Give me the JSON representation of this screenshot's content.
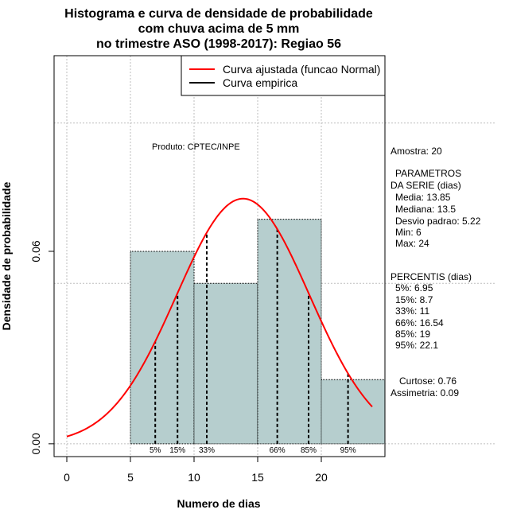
{
  "chart_data": {
    "type": "bar",
    "title": [
      "Histograma e curva de densidade de probabilidade",
      "com chuva acima de 5 mm",
      "no trimestre ASO (1998-2017): Regiao 56"
    ],
    "xlabel": "Numero de dias",
    "ylabel": "Densidade de probabilidade",
    "xlim": [
      -1,
      25
    ],
    "ylim": [
      -0.004,
      0.121
    ],
    "x_ticks": [
      0,
      5,
      10,
      15,
      20
    ],
    "x_tick_labels": [
      "0",
      "5",
      "10",
      "15",
      "20"
    ],
    "y_ticks": [
      0.0,
      0.06
    ],
    "y_tick_labels": [
      "0.00",
      "0.06"
    ],
    "grid_y": [
      0.0,
      0.05,
      0.1
    ],
    "grid_x": [
      0,
      5,
      10,
      15,
      20
    ],
    "histogram": {
      "bin_edges": [
        5,
        10,
        15,
        20,
        25
      ],
      "densities": [
        0.06,
        0.05,
        0.07,
        0.02
      ],
      "color": "#b6cece"
    },
    "normal_curve": {
      "mean": 13.85,
      "sd": 5.22,
      "x_range": [
        0,
        24
      ],
      "color": "#ff0000"
    },
    "percentiles": [
      {
        "label": "5%",
        "x": 6.95
      },
      {
        "label": "15%",
        "x": 8.7
      },
      {
        "label": "33%",
        "x": 11
      },
      {
        "label": "66%",
        "x": 16.54
      },
      {
        "label": "85%",
        "x": 19
      },
      {
        "label": "95%",
        "x": 22.1
      }
    ],
    "legend": {
      "position": "top-right",
      "entries": [
        {
          "label": "Curva ajustada (funcao Normal)",
          "color": "#ff0000"
        },
        {
          "label": "Curva empirica",
          "color": "#000000"
        }
      ]
    },
    "annotation": "Produto: CPTEC/INPE"
  },
  "side_panel": {
    "amostra": "Amostra: 20",
    "param_header_1": "PARAMETROS",
    "param_header_2": "DA SERIE (dias)",
    "media": "Media: 13.85",
    "mediana": "Mediana: 13.5",
    "desvio": "Desvio padrao: 5.22",
    "min": "Min: 6",
    "max": "Max: 24",
    "pct_header": "PERCENTIS (dias)",
    "p5": "5%: 6.95",
    "p15": "15%: 8.7",
    "p33": "33%: 11",
    "p66": "66%: 16.54",
    "p85": "85%: 19",
    "p95": "95%: 22.1",
    "curtose": "Curtose: 0.76",
    "assimetria": "Assimetria: 0.09"
  }
}
